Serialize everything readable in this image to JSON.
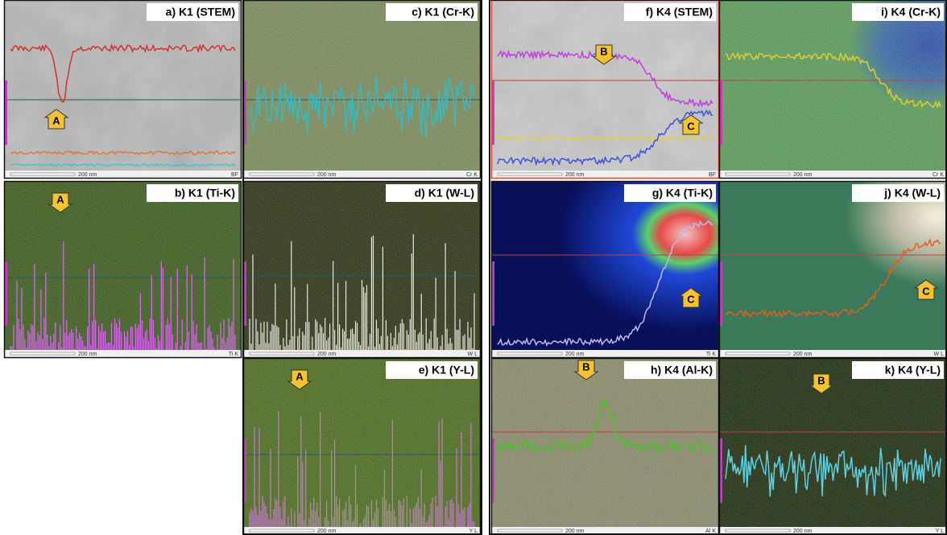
{
  "panels": [
    {
      "label": "a) K1 (STEM)",
      "scale": "200 nm",
      "tag": "BF",
      "markers": [
        "A"
      ]
    },
    {
      "label": "b) K1 (Ti-K)",
      "scale": "200 nm",
      "tag": "Ti K",
      "markers": [
        "A"
      ]
    },
    {
      "label": "c) K1 (Cr-K)",
      "scale": "200 nm",
      "tag": "Cr K",
      "markers": []
    },
    {
      "label": "d) K1 (W-L)",
      "scale": "200 nm",
      "tag": "W L",
      "markers": []
    },
    {
      "label": "e) K1 (Y-L)",
      "scale": "200 nm",
      "tag": "Y L",
      "markers": [
        "A"
      ]
    },
    {
      "label": "f) K4 (STEM)",
      "scale": "200 nm",
      "tag": "BF",
      "markers": [
        "B",
        "C"
      ]
    },
    {
      "label": "g) K4 (Ti-K)",
      "scale": "200 nm",
      "tag": "Ti K",
      "markers": [
        "C"
      ]
    },
    {
      "label": "h) K4 (Al-K)",
      "scale": "200 nm",
      "tag": "Al K",
      "markers": [
        "B"
      ]
    },
    {
      "label": "i) K4 (Cr-K)",
      "scale": "200 nm",
      "tag": "Cr K",
      "markers": []
    },
    {
      "label": "j) K4 (W-L)",
      "scale": "200 nm",
      "tag": "W L",
      "markers": [
        "C"
      ]
    },
    {
      "label": "k) K4 (Y-L)",
      "scale": "200 nm",
      "tag": "Y L",
      "markers": [
        "B"
      ]
    }
  ]
}
